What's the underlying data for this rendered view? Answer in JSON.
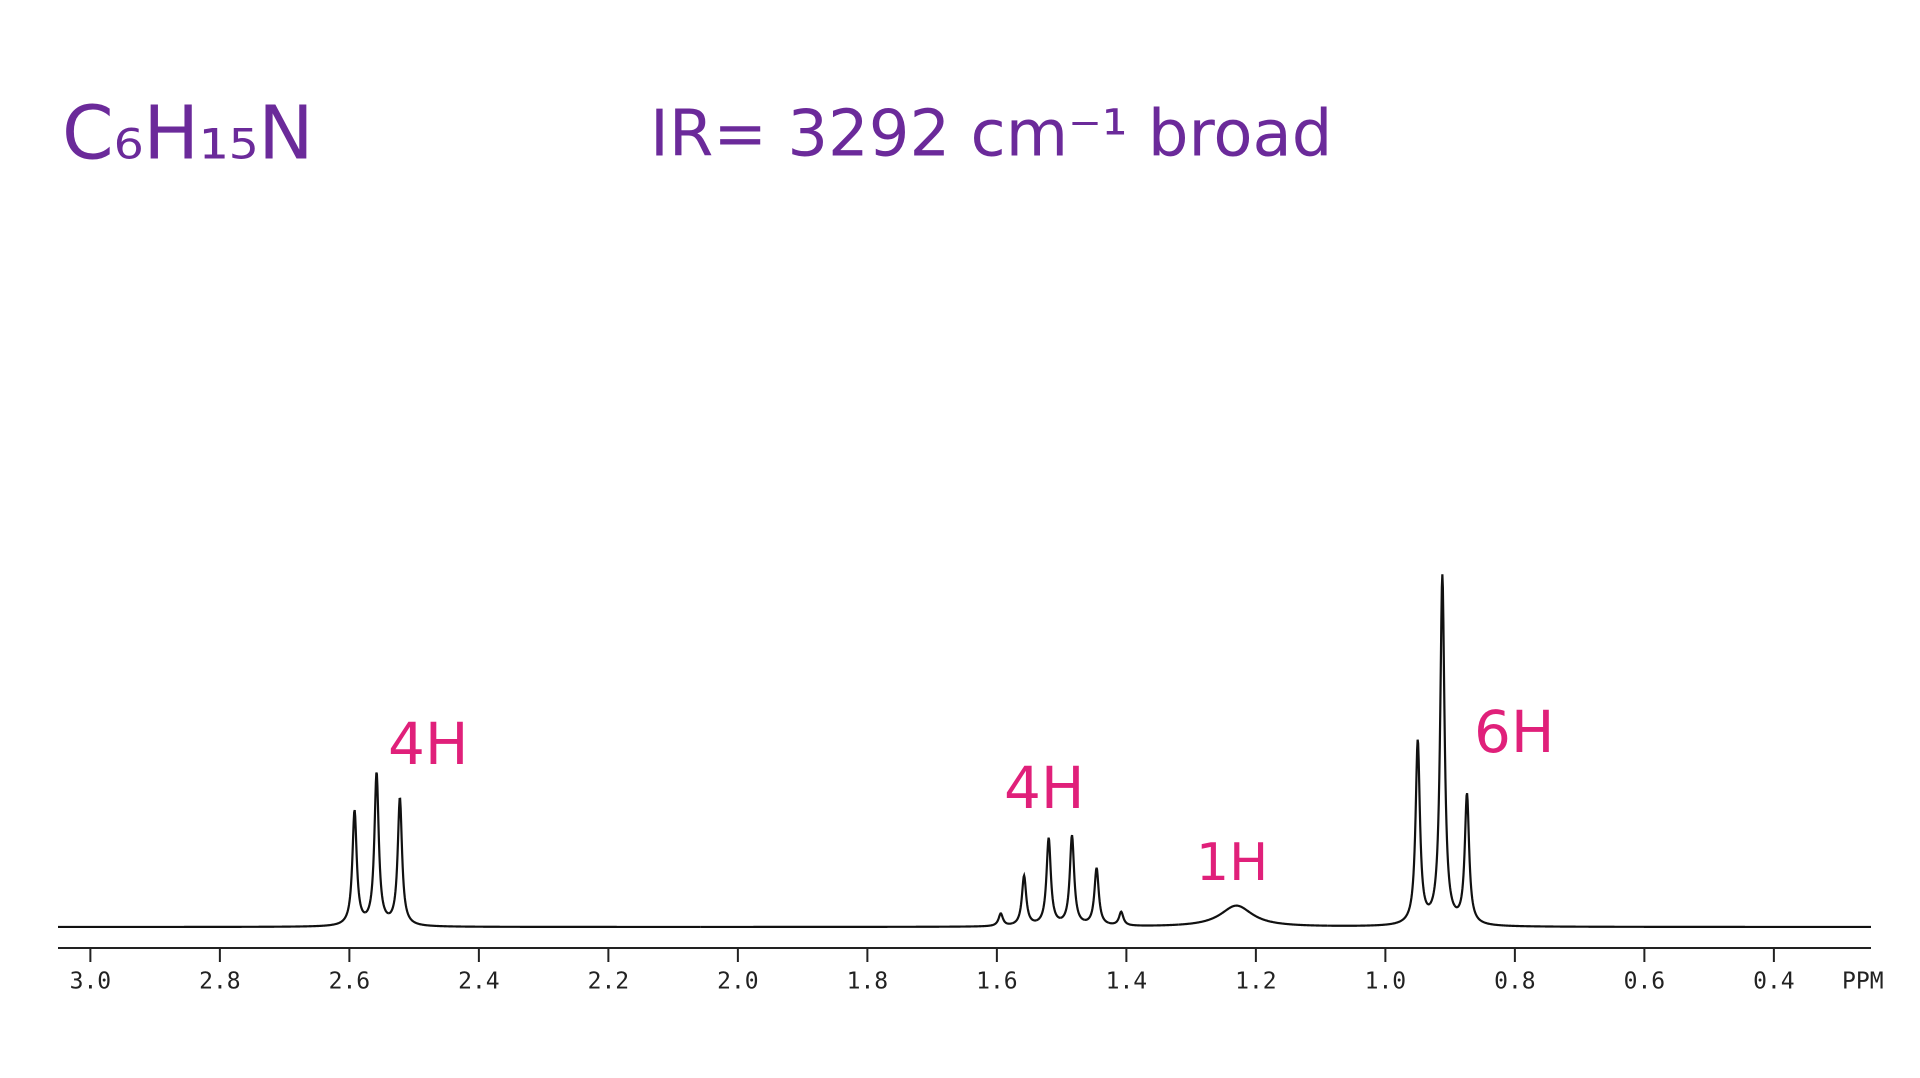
{
  "chart_data": {
    "type": "nmr",
    "formula": "C₆H₁₅N",
    "ir_note": "IR= 3292 cm⁻¹ broad",
    "integrations": [
      "4H",
      "4H",
      "1H",
      "6H"
    ],
    "x_label": "PPM",
    "xlim": [
      3.05,
      0.25
    ],
    "xticks": [
      {
        "value": 3.0,
        "label": "3.0"
      },
      {
        "value": 2.8,
        "label": "2.8"
      },
      {
        "value": 2.6,
        "label": "2.6"
      },
      {
        "value": 2.4,
        "label": "2.4"
      },
      {
        "value": 2.2,
        "label": "2.2"
      },
      {
        "value": 2.0,
        "label": "2.0"
      },
      {
        "value": 1.8,
        "label": "1.8"
      },
      {
        "value": 1.6,
        "label": "1.6"
      },
      {
        "value": 1.4,
        "label": "1.4"
      },
      {
        "value": 1.2,
        "label": "1.2"
      },
      {
        "value": 1.0,
        "label": "1.0"
      },
      {
        "value": 0.8,
        "label": "0.8"
      },
      {
        "value": 0.6,
        "label": "0.6"
      },
      {
        "value": 0.4,
        "label": "0.4"
      }
    ],
    "ylim": [
      0,
      300
    ],
    "x": [
      2.592,
      2.558,
      2.522,
      1.594,
      1.558,
      1.52,
      1.484,
      1.446,
      1.408,
      1.23,
      0.95,
      0.912,
      0.874
    ],
    "values": [
      92,
      122,
      102,
      10,
      40,
      70,
      72,
      46,
      11,
      17,
      147,
      280,
      104
    ],
    "widths": [
      0.004,
      0.004,
      0.004,
      0.004,
      0.004,
      0.004,
      0.004,
      0.004,
      0.004,
      0.03,
      0.004,
      0.004,
      0.004
    ],
    "color": "#111111"
  }
}
